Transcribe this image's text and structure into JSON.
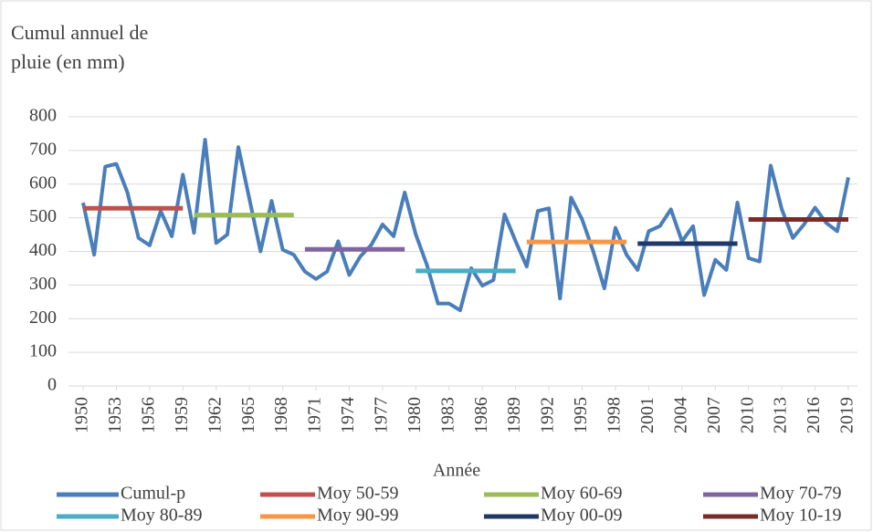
{
  "chart_data": {
    "type": "line",
    "y_label": "Cumul annuel de pluie (en mm)",
    "x_label": "Année",
    "xlim": [
      1950,
      2019
    ],
    "xticks": [
      1950,
      1953,
      1956,
      1959,
      1962,
      1965,
      1968,
      1971,
      1974,
      1977,
      1980,
      1983,
      1986,
      1989,
      1992,
      1995,
      1998,
      2001,
      2004,
      2007,
      2010,
      2013,
      2016,
      2019
    ],
    "ylim": [
      0,
      800
    ],
    "yticks": [
      0,
      100,
      200,
      300,
      400,
      500,
      600,
      700,
      800
    ],
    "grid": true,
    "legend": "bottom",
    "series": [
      {
        "name": "Cumul-p",
        "color": "#4a7ebb",
        "x": [
          1950,
          1951,
          1952,
          1953,
          1954,
          1955,
          1956,
          1957,
          1958,
          1959,
          1960,
          1961,
          1962,
          1963,
          1964,
          1965,
          1966,
          1967,
          1968,
          1969,
          1970,
          1971,
          1972,
          1973,
          1974,
          1975,
          1976,
          1977,
          1978,
          1979,
          1980,
          1981,
          1982,
          1983,
          1984,
          1985,
          1986,
          1987,
          1988,
          1989,
          1990,
          1991,
          1992,
          1993,
          1994,
          1995,
          1996,
          1997,
          1998,
          1999,
          2000,
          2001,
          2002,
          2003,
          2004,
          2005,
          2006,
          2007,
          2008,
          2009,
          2010,
          2011,
          2012,
          2013,
          2014,
          2015,
          2016,
          2017,
          2018,
          2019
        ],
        "values": [
          545,
          390,
          652,
          660,
          575,
          440,
          418,
          520,
          445,
          628,
          455,
          732,
          425,
          450,
          710,
          555,
          400,
          550,
          405,
          390,
          340,
          318,
          340,
          430,
          330,
          385,
          420,
          480,
          445,
          575,
          450,
          360,
          245,
          245,
          225,
          350,
          298,
          315,
          510,
          430,
          355,
          520,
          528,
          260,
          560,
          495,
          400,
          290,
          470,
          390,
          345,
          460,
          475,
          525,
          430,
          475,
          270,
          375,
          345,
          545,
          380,
          370,
          655,
          525,
          440,
          480,
          530,
          485,
          460,
          620
        ]
      },
      {
        "name": "Moy 50-59",
        "color": "#c0504d",
        "x": [
          1950,
          1959
        ],
        "values": [
          528,
          528
        ]
      },
      {
        "name": "Moy 60-69",
        "color": "#9bbb59",
        "x": [
          1960,
          1969
        ],
        "values": [
          508,
          508
        ]
      },
      {
        "name": "Moy 70-79",
        "color": "#8064a2",
        "x": [
          1970,
          1979
        ],
        "values": [
          406,
          406
        ]
      },
      {
        "name": "Moy 80-89",
        "color": "#4bacc6",
        "x": [
          1980,
          1989
        ],
        "values": [
          342,
          342
        ]
      },
      {
        "name": "Moy 90-99",
        "color": "#f79646",
        "x": [
          1990,
          1999
        ],
        "values": [
          428,
          428
        ]
      },
      {
        "name": "Moy 00-09",
        "color": "#1f3864",
        "x": [
          2000,
          2009
        ],
        "values": [
          423,
          423
        ]
      },
      {
        "name": "Moy 10-19",
        "color": "#772c2a",
        "x": [
          2010,
          2019
        ],
        "values": [
          495,
          495
        ]
      }
    ]
  }
}
